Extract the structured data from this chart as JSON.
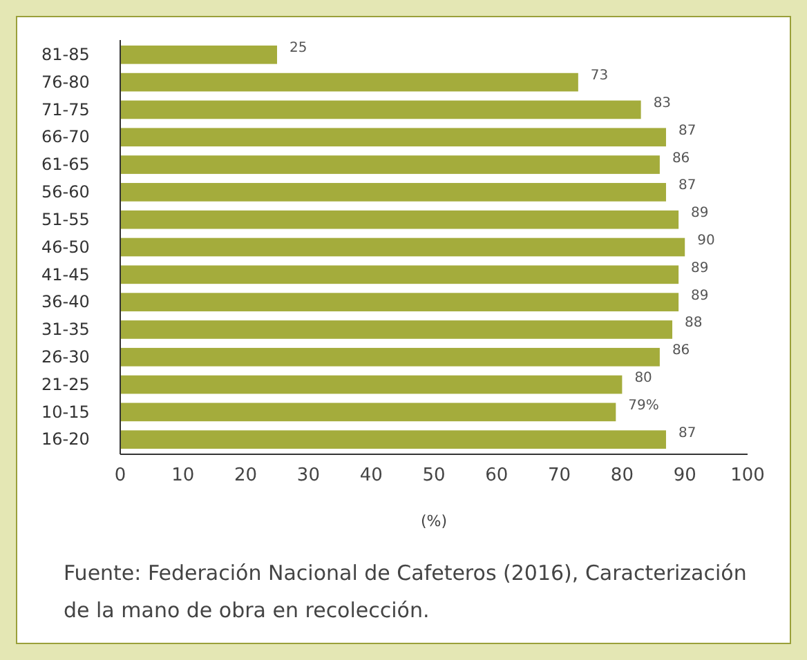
{
  "chart_data": {
    "type": "bar",
    "orientation": "horizontal",
    "categories": [
      "81-85",
      "76-80",
      "71-75",
      "66-70",
      "61-65",
      "56-60",
      "51-55",
      "46-50",
      "41-45",
      "36-40",
      "31-35",
      "26-30",
      "21-25",
      "10-15",
      "16-20"
    ],
    "values": [
      25,
      73,
      83,
      87,
      86,
      87,
      89,
      90,
      89,
      89,
      88,
      86,
      80,
      79,
      87
    ],
    "value_labels": [
      "25",
      "73",
      "83",
      "87",
      "86",
      "87",
      "89",
      "90",
      "89",
      "89",
      "88",
      "86",
      "80",
      "79%",
      "87"
    ],
    "color": "#a4ac3c",
    "xlim": [
      0,
      100
    ],
    "xticks": [
      0,
      10,
      20,
      30,
      40,
      50,
      60,
      70,
      80,
      90,
      100
    ],
    "xlabel": "(%)",
    "annotations": [
      "Fuente: Federación Nacional de Cafeteros (2016), Caracterización de la mano de obra en recolección."
    ]
  }
}
